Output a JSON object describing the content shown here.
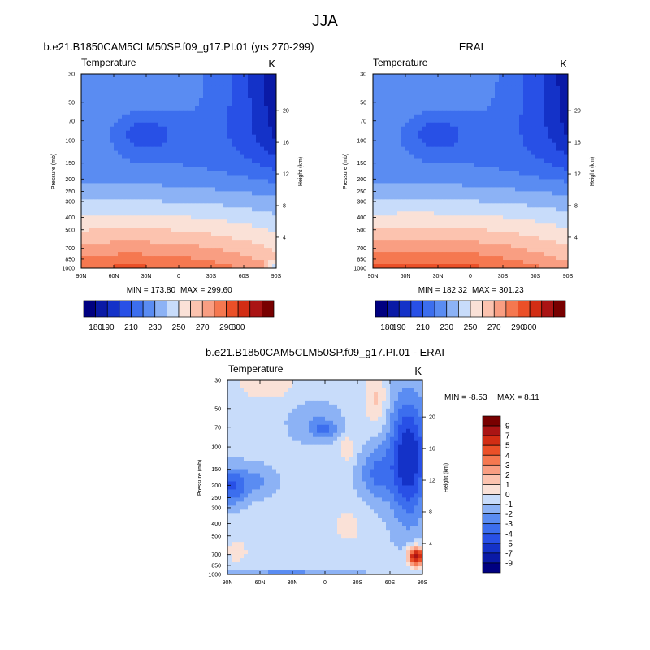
{
  "figure_title": "JJA",
  "chart_data": [
    {
      "type": "heatmap",
      "title": "b.e21.B1850CAM5CLM50SP.f09_g17.PI.01 (yrs 270-299)",
      "variable": "Temperature",
      "units": "K",
      "ylabel": "Pressure (mb)",
      "y2label": "Height (km)",
      "xlabel": "",
      "x_ticks": [
        "90N",
        "60N",
        "30N",
        "0",
        "30S",
        "60S",
        "90S"
      ],
      "y_ticks": [
        "30",
        "50",
        "70",
        "100",
        "150",
        "200",
        "250",
        "300",
        "400",
        "500",
        "700",
        "850",
        "1000"
      ],
      "y2_ticks": [
        "4",
        "8",
        "12",
        "16",
        "20"
      ],
      "ylim": [
        1000,
        30
      ],
      "y_scale": "log",
      "min_label": "MIN = 173.80",
      "max_label": "MAX = 299.60",
      "min": 173.8,
      "max": 299.6,
      "colorbar": {
        "orientation": "horizontal",
        "levels": [
          180,
          190,
          200,
          210,
          220,
          230,
          240,
          250,
          260,
          270,
          280,
          290,
          300
        ],
        "tick_labels": [
          "180",
          "190",
          "210",
          "230",
          "250",
          "270",
          "290",
          "300"
        ],
        "colors": [
          "#000080",
          "#0a1aa6",
          "#1432c8",
          "#2850e6",
          "#3c6eee",
          "#5a8cf2",
          "#8cb2f5",
          "#c8dcfa",
          "#fae1d7",
          "#fcc3af",
          "#f99e82",
          "#f57850",
          "#eb5028",
          "#d22d14",
          "#aa1414",
          "#780000"
        ]
      },
      "field_profile": "control"
    },
    {
      "type": "heatmap",
      "title": "ERAI",
      "variable": "Temperature",
      "units": "K",
      "ylabel": "Pressure (mb)",
      "y2label": "Height (km)",
      "xlabel": "",
      "x_ticks": [
        "90N",
        "60N",
        "30N",
        "0",
        "30S",
        "60S",
        "90S"
      ],
      "y_ticks": [
        "30",
        "50",
        "70",
        "100",
        "150",
        "200",
        "250",
        "300",
        "400",
        "500",
        "700",
        "850",
        "1000"
      ],
      "y2_ticks": [
        "4",
        "8",
        "12",
        "16",
        "20"
      ],
      "ylim": [
        1000,
        30
      ],
      "y_scale": "log",
      "min_label": "MIN = 182.32",
      "max_label": "MAX = 301.23",
      "min": 182.32,
      "max": 301.23,
      "colorbar": {
        "orientation": "horizontal",
        "levels": [
          180,
          190,
          200,
          210,
          220,
          230,
          240,
          250,
          260,
          270,
          280,
          290,
          300
        ],
        "tick_labels": [
          "180",
          "190",
          "210",
          "230",
          "250",
          "270",
          "290",
          "300"
        ],
        "colors": [
          "#000080",
          "#0a1aa6",
          "#1432c8",
          "#2850e6",
          "#3c6eee",
          "#5a8cf2",
          "#8cb2f5",
          "#c8dcfa",
          "#fae1d7",
          "#fcc3af",
          "#f99e82",
          "#f57850",
          "#eb5028",
          "#d22d14",
          "#aa1414",
          "#780000"
        ]
      },
      "field_profile": "reanalysis"
    },
    {
      "type": "heatmap",
      "title": "b.e21.B1850CAM5CLM50SP.f09_g17.PI.01 - ERAI",
      "variable": "Temperature",
      "units": "K",
      "ylabel": "Pressure (mb)",
      "y2label": "Height (km)",
      "xlabel": "",
      "x_ticks": [
        "90N",
        "60N",
        "30N",
        "0",
        "30S",
        "60S",
        "90S"
      ],
      "y_ticks": [
        "30",
        "50",
        "70",
        "100",
        "150",
        "200",
        "250",
        "300",
        "400",
        "500",
        "700",
        "850",
        "1000"
      ],
      "y2_ticks": [
        "4",
        "8",
        "12",
        "16",
        "20"
      ],
      "ylim": [
        1000,
        30
      ],
      "y_scale": "log",
      "min_label": "MIN =  -8.53",
      "max_label": "MAX =   8.11",
      "min": -8.53,
      "max": 8.11,
      "colorbar": {
        "orientation": "vertical",
        "levels": [
          -9,
          -7,
          -5,
          -4,
          -3,
          -2,
          -1,
          0,
          1,
          2,
          3,
          4,
          5,
          7,
          9
        ],
        "tick_labels": [
          "9",
          "7",
          "5",
          "4",
          "3",
          "2",
          "1",
          "0",
          "-1",
          "-2",
          "-3",
          "-4",
          "-5",
          "-7",
          "-9"
        ],
        "colors": [
          "#000080",
          "#0a1aa6",
          "#1432c8",
          "#2850e6",
          "#3c6eee",
          "#5a8cf2",
          "#8cb2f5",
          "#c8dcfa",
          "#fae1d7",
          "#fcc3af",
          "#f99e82",
          "#f57850",
          "#eb5028",
          "#d22d14",
          "#aa1414",
          "#780000"
        ]
      },
      "field_profile": "difference"
    }
  ]
}
